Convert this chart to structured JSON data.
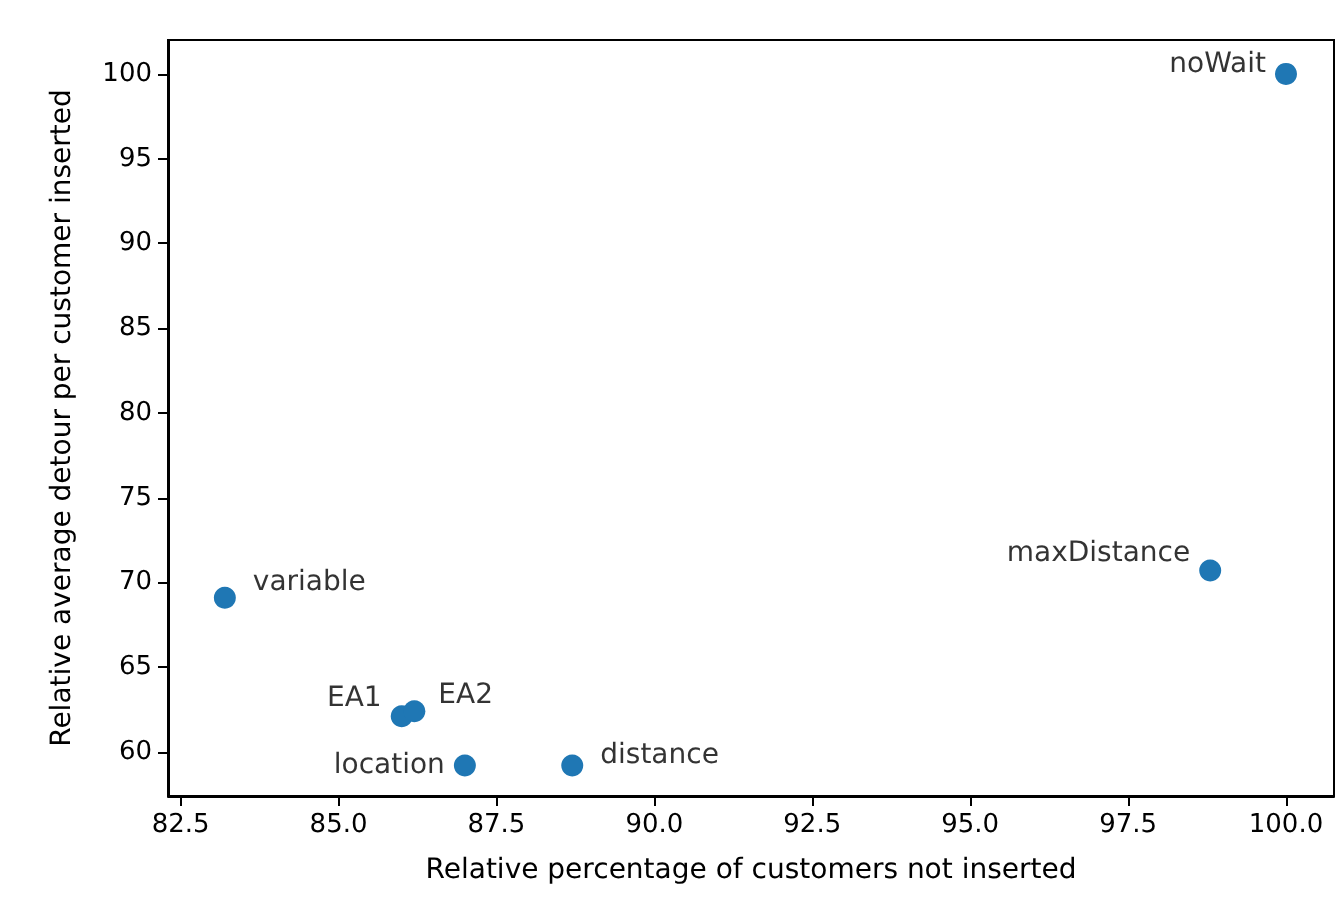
{
  "chart_data": {
    "type": "scatter",
    "xlabel": "Relative percentage of customers not inserted",
    "ylabel": "Relative average detour per customer inserted",
    "x": [
      100,
      98.8,
      83.2,
      86.0,
      86.2,
      87.0,
      88.7
    ],
    "values": [
      100,
      70.7,
      69.1,
      62.1,
      62.4,
      59.2,
      59.2
    ],
    "color": "#1f77b4",
    "marker": "circle",
    "xlim": [
      82.3,
      100.76
    ],
    "xticks": [
      82.5,
      {
        "value": 85,
        "label": "85.0"
      },
      87.5,
      {
        "value": 90,
        "label": "90.0"
      },
      92.5,
      {
        "value": 95,
        "label": "95.0"
      },
      97.5,
      {
        "value": 100,
        "label": "100.0"
      }
    ],
    "ylim": [
      57.4,
      102
    ],
    "yticks": [
      60,
      65,
      70,
      75,
      80,
      85,
      90,
      95,
      100
    ],
    "annotations": [
      {
        "text": "noWait",
        "x": 100,
        "y": 100
      },
      {
        "text": "maxDistance",
        "x": 98.8,
        "y": 70.7
      },
      {
        "text": "variable",
        "x": 83.2,
        "y": 69.1
      },
      {
        "text": "EA1",
        "x": 86.0,
        "y": 62.1
      },
      {
        "text": "EA2",
        "x": 86.2,
        "y": 62.4
      },
      {
        "text": "location",
        "x": 87.0,
        "y": 59.2
      },
      {
        "text": "distance",
        "x": 88.7,
        "y": 59.2
      }
    ]
  }
}
